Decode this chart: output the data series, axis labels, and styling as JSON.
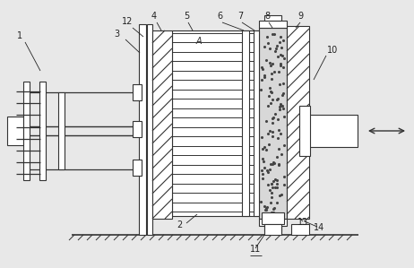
{
  "bg_color": "#e8e8e8",
  "line_color": "#333333",
  "lw": 0.8,
  "fig_width": 4.62,
  "fig_height": 2.99,
  "dpi": 100
}
